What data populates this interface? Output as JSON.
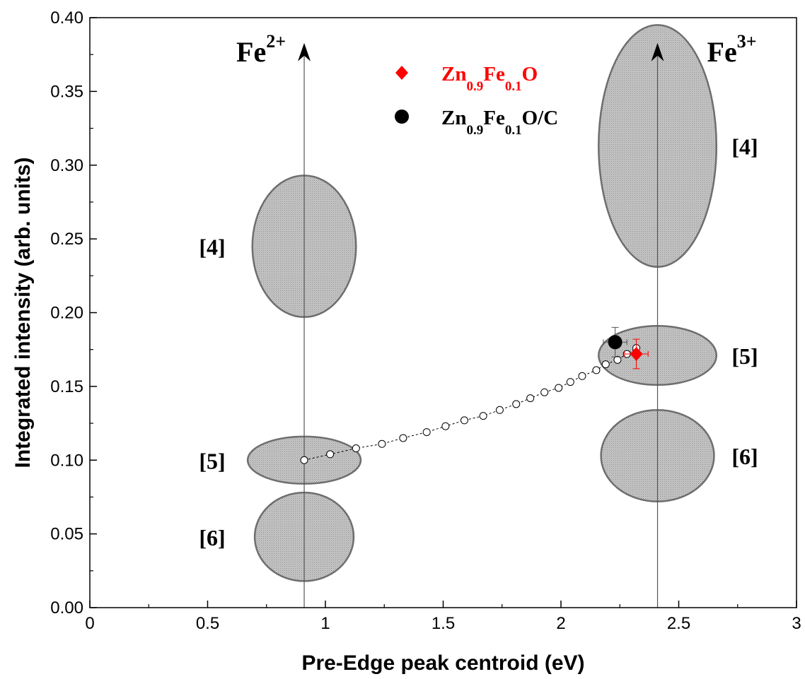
{
  "chart_data": {
    "type": "scatter",
    "xlabel": "Pre-Edge peak centroid (eV)",
    "ylabel": "Integrated intensity (arb. units)",
    "xlim": [
      0,
      3
    ],
    "ylim": [
      0,
      0.4
    ],
    "x_ticks": [
      "0",
      "0.5",
      "1",
      "1.5",
      "2",
      "2.5",
      "3"
    ],
    "y_ticks": [
      "0.00",
      "0.05",
      "0.10",
      "0.15",
      "0.20",
      "0.25",
      "0.30",
      "0.35",
      "0.40"
    ],
    "grid": false,
    "legend_position": "top-center",
    "reference_lines": [
      {
        "label": "Fe",
        "superscript": "2+",
        "x": 0.91
      },
      {
        "label": "Fe",
        "superscript": "3+",
        "x": 2.41
      }
    ],
    "regions": [
      {
        "label": "[4]",
        "cx": 0.91,
        "cy": 0.245,
        "rx": 0.22,
        "ry": 0.048
      },
      {
        "label": "[5]",
        "cx": 0.91,
        "cy": 0.1,
        "rx": 0.24,
        "ry": 0.016
      },
      {
        "label": "[6]",
        "cx": 0.91,
        "cy": 0.048,
        "rx": 0.21,
        "ry": 0.03
      },
      {
        "label": "[4]",
        "cx": 2.41,
        "cy": 0.313,
        "rx": 0.25,
        "ry": 0.082
      },
      {
        "label": "[5]",
        "cx": 2.41,
        "cy": 0.171,
        "rx": 0.25,
        "ry": 0.02
      },
      {
        "label": "[6]",
        "cx": 2.41,
        "cy": 0.103,
        "rx": 0.24,
        "ry": 0.031
      }
    ],
    "mixing_line": {
      "x": [
        0.91,
        1.02,
        1.13,
        1.24,
        1.33,
        1.43,
        1.51,
        1.59,
        1.67,
        1.74,
        1.81,
        1.87,
        1.93,
        1.99,
        2.04,
        2.09,
        2.15,
        2.19,
        2.24,
        2.28,
        2.32
      ],
      "y": [
        0.1,
        0.104,
        0.108,
        0.111,
        0.115,
        0.119,
        0.123,
        0.127,
        0.13,
        0.134,
        0.138,
        0.142,
        0.146,
        0.149,
        0.153,
        0.157,
        0.161,
        0.165,
        0.168,
        0.172,
        0.176
      ]
    },
    "series": [
      {
        "base": "Zn",
        "sub1": "0.9",
        "mid": "Fe",
        "sub2": "0.1",
        "tail": "O",
        "marker": "diamond",
        "color": "#ff0000",
        "x": 2.32,
        "y": 0.172,
        "x_err": 0.05,
        "y_err": 0.01
      },
      {
        "base": "Zn",
        "sub1": "0.9",
        "mid": "Fe",
        "sub2": "0.1",
        "tail": "O/C",
        "marker": "circle",
        "color": "#000000",
        "x": 2.23,
        "y": 0.18,
        "x_err": 0.05,
        "y_err": 0.01
      }
    ]
  }
}
